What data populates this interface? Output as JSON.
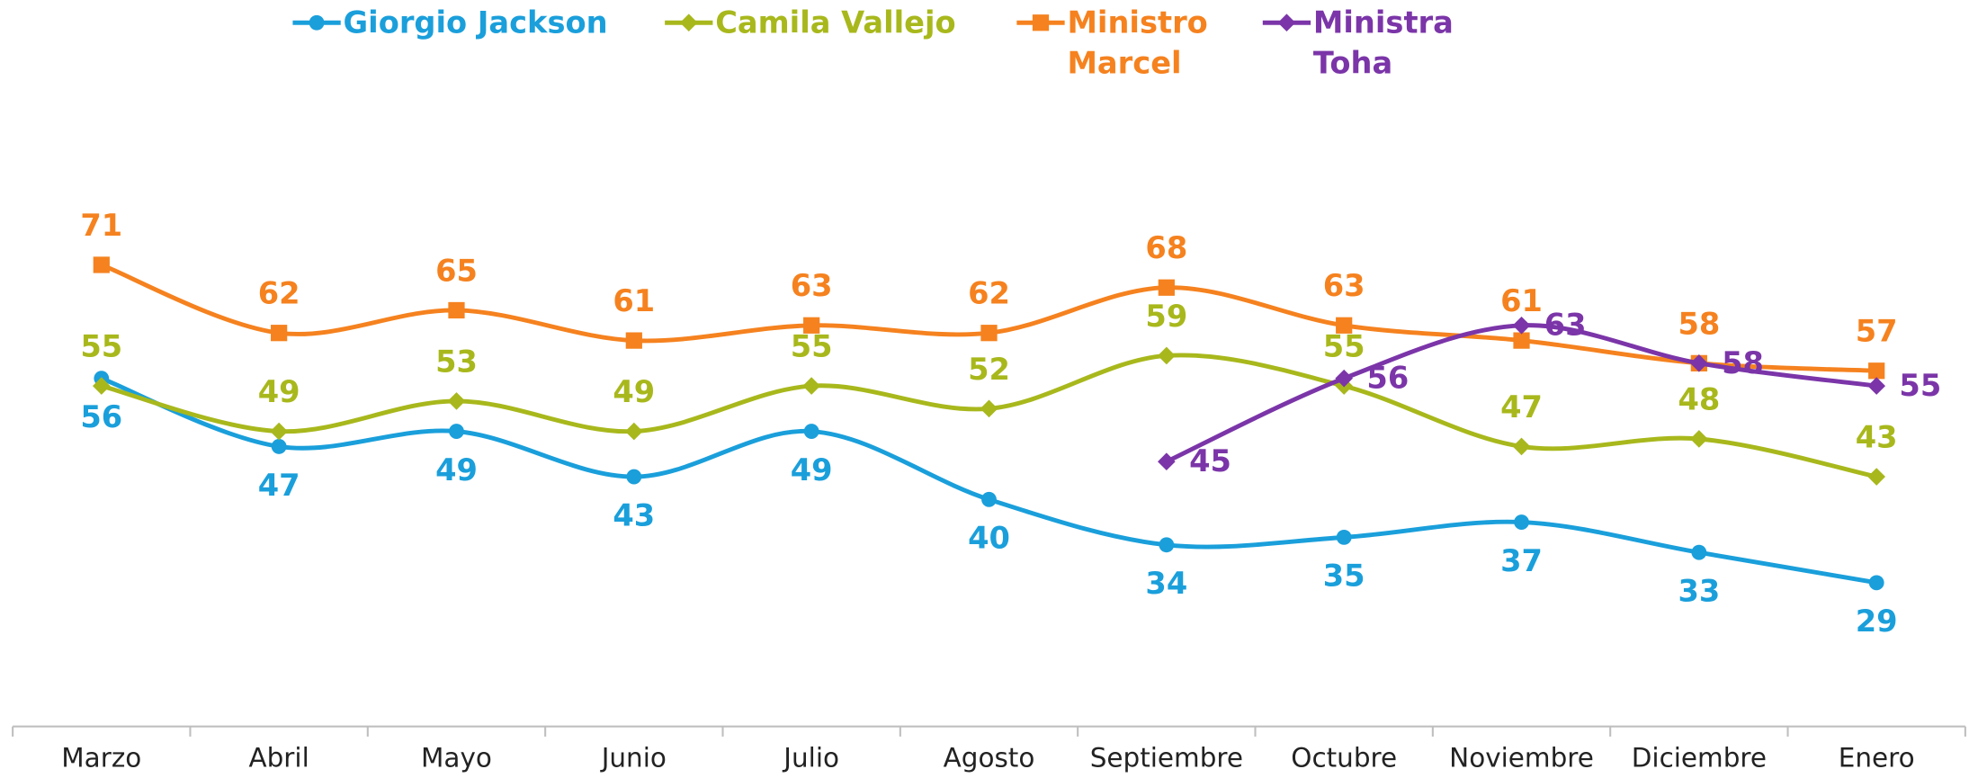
{
  "chart_data": {
    "type": "line",
    "categories": [
      "Marzo",
      "Abril",
      "Mayo",
      "Junio",
      "Julio",
      "Agosto",
      "Septiembre",
      "Octubre",
      "Noviembre",
      "Diciembre",
      "Enero"
    ],
    "series": [
      {
        "name": "Giorgio Jackson",
        "color": "#1a9fdb",
        "values": [
          56,
          47,
          49,
          43,
          49,
          40,
          34,
          35,
          37,
          33,
          29
        ]
      },
      {
        "name": "Camila Vallejo",
        "color": "#a8b81c",
        "values": [
          55,
          49,
          53,
          49,
          55,
          52,
          59,
          55,
          47,
          48,
          43
        ]
      },
      {
        "name": "Ministro Marcel",
        "color": "#f5821f",
        "values": [
          71,
          62,
          65,
          61,
          63,
          62,
          68,
          63,
          61,
          58,
          57
        ]
      },
      {
        "name": "Ministra Toha",
        "color": "#7b35a8",
        "values": [
          null,
          null,
          null,
          null,
          null,
          null,
          45,
          56,
          63,
          58,
          55
        ]
      }
    ],
    "ylim": [
      10,
      100
    ],
    "grid": false,
    "legend": "top"
  }
}
